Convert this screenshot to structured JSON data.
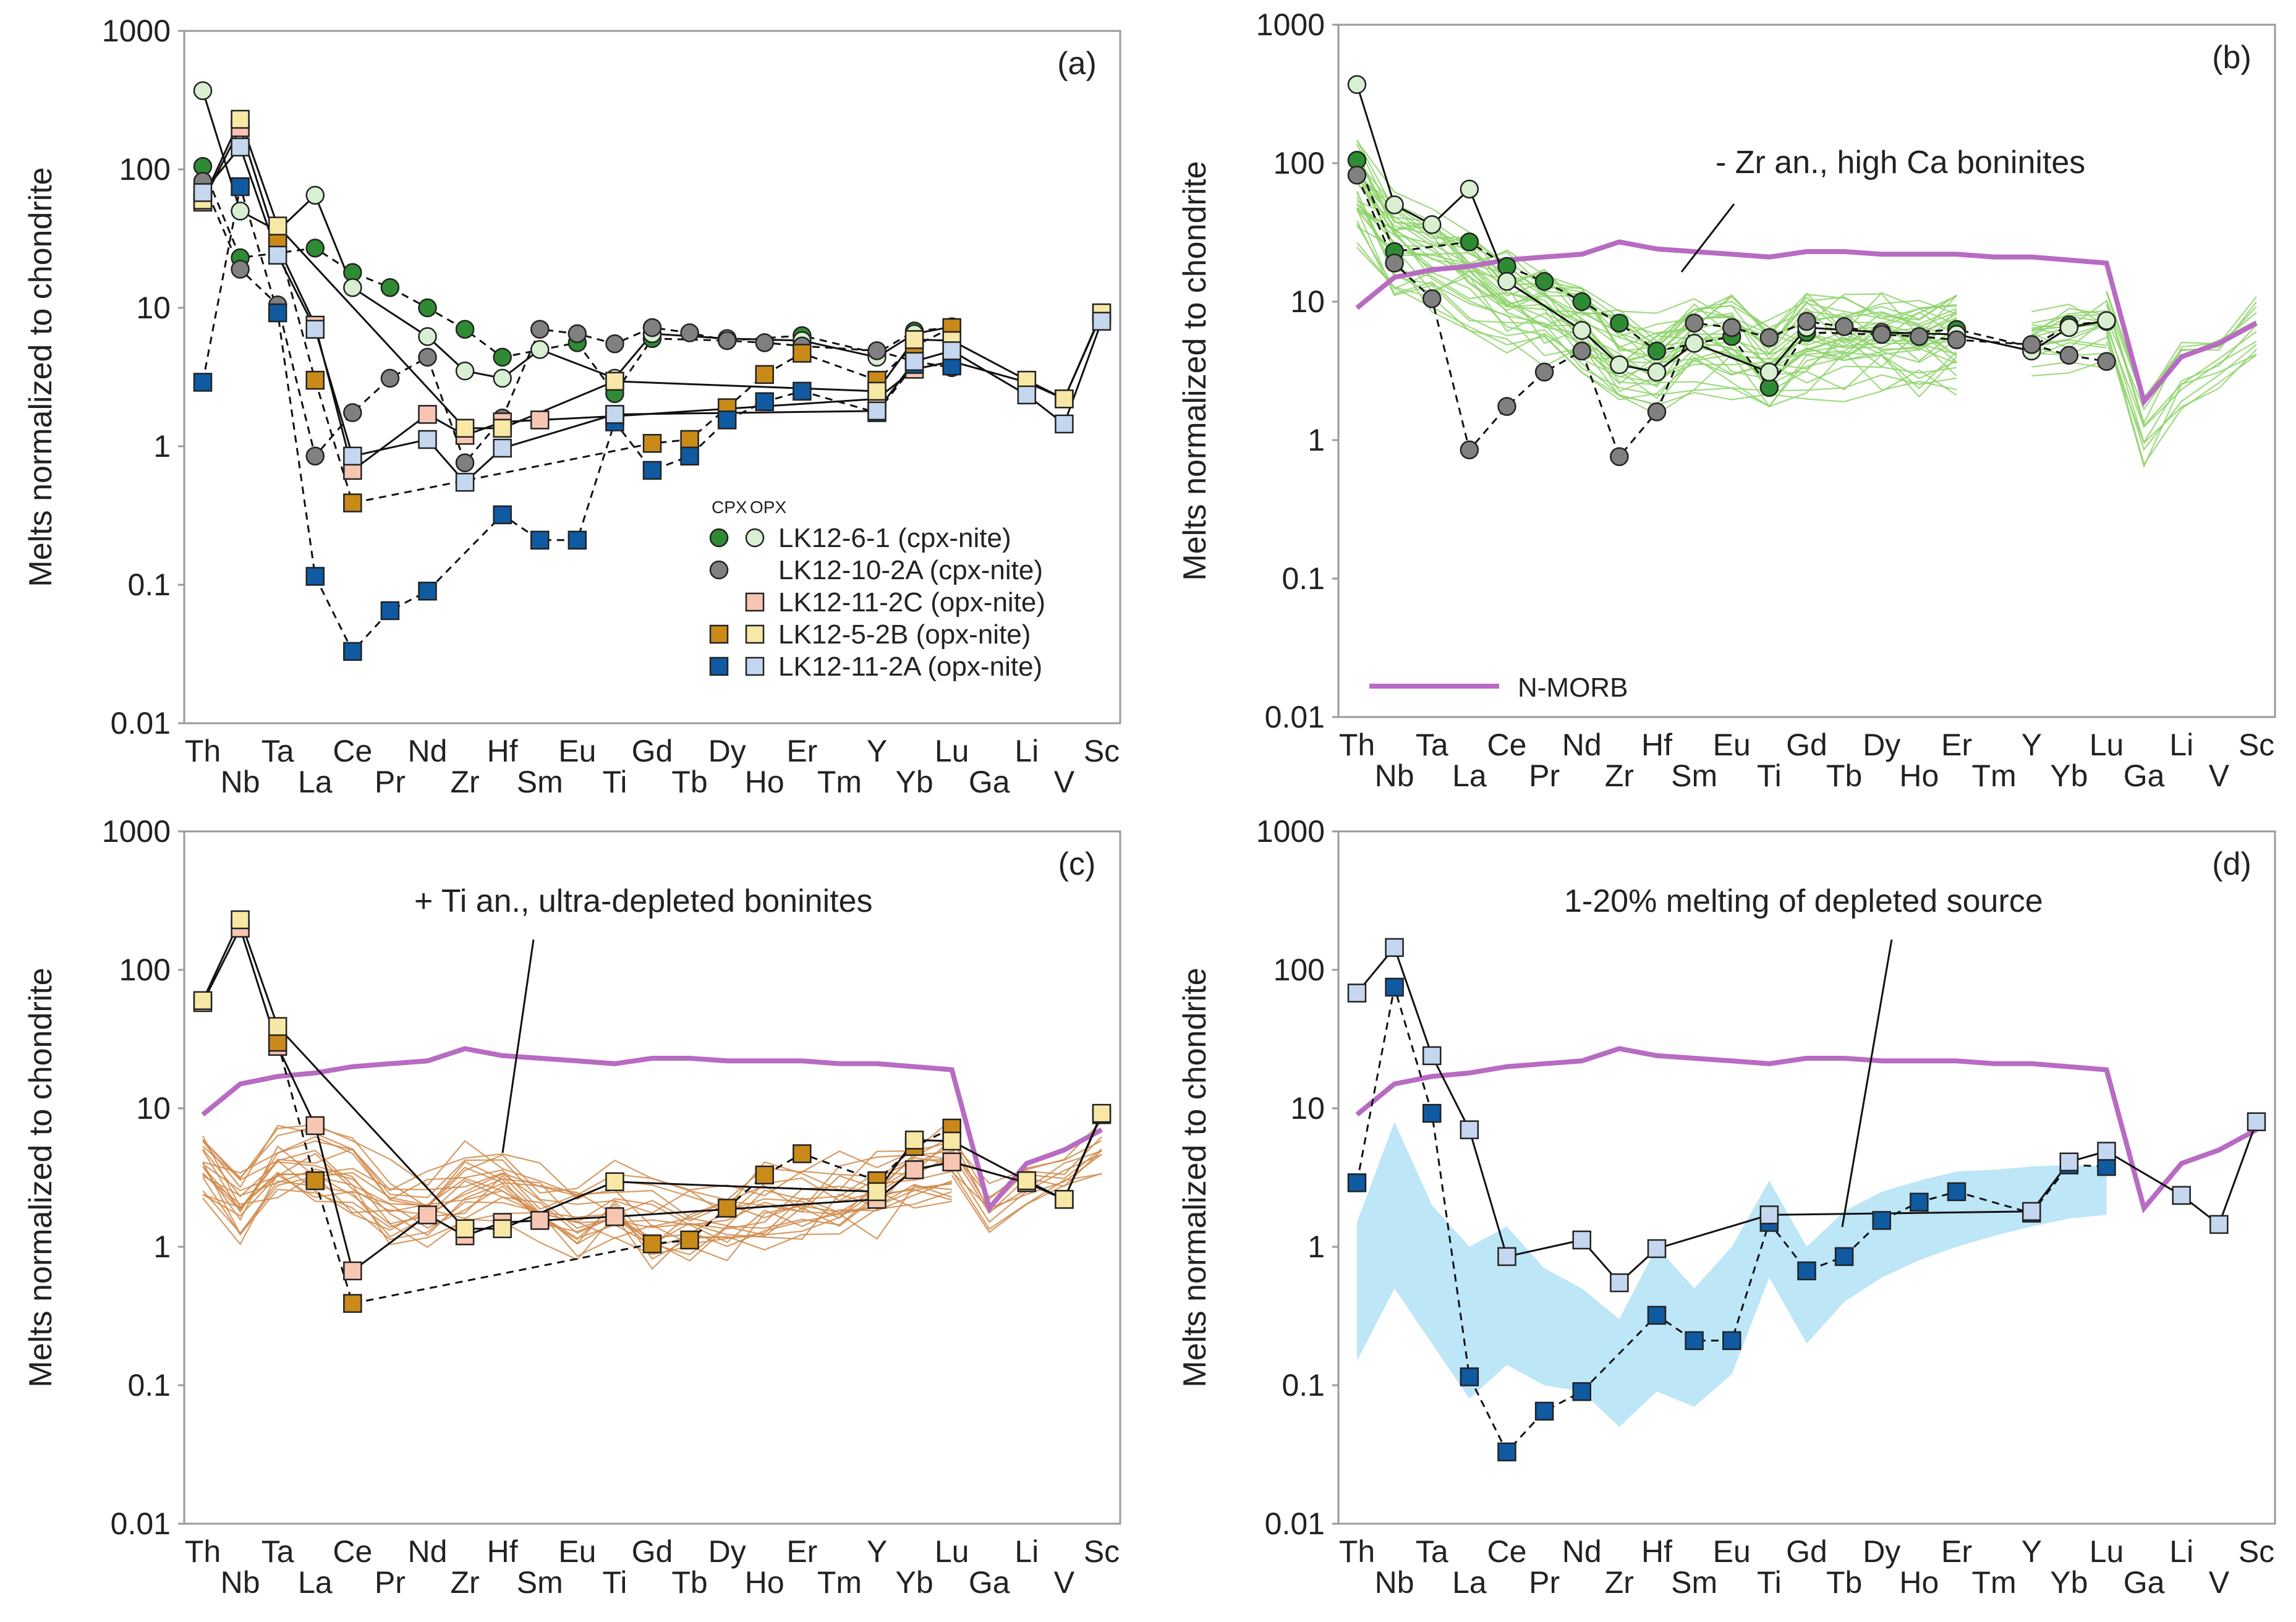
{
  "elements": [
    "Th",
    "Nb",
    "Ta",
    "La",
    "Ce",
    "Pr",
    "Nd",
    "Zr",
    "Hf",
    "Sm",
    "Eu",
    "Ti",
    "Gd",
    "Tb",
    "Dy",
    "Ho",
    "Er",
    "Tm",
    "Y",
    "Yb",
    "Lu",
    "Ga",
    "Li",
    "V",
    "Sc"
  ],
  "y_ticks": [
    "0.01",
    "0.1",
    "1",
    "10",
    "100",
    "1000"
  ],
  "y_label": "Melts normalized to chondrite",
  "colors": {
    "green_dark": "#2e8b34",
    "green_light": "#d8efd2",
    "grey": "#808080",
    "pink": "#f7c6b3",
    "orange": "#c98a1a",
    "yellow": "#f7e8a6",
    "blue_dark": "#0f5aa1",
    "blue_light": "#c5d7ef",
    "nmorb": "#b86bc2",
    "boninite_green": "#8ed46b",
    "boninite_orange": "#d08a4a",
    "band": "#bde6f7"
  },
  "legend": {
    "cpx_header": "CPX",
    "opx_header": "OPX",
    "entries": [
      "LK12-6-1 (cpx-nite)",
      "LK12-10-2A (cpx-nite)",
      "LK12-11-2C (opx-nite)",
      "LK12-5-2B (opx-nite)",
      "LK12-11-2A (opx-nite)"
    ]
  },
  "panels": {
    "a": {
      "letter": "(a)"
    },
    "b": {
      "letter": "(b)",
      "annotation": "- Zr an., high Ca boninites",
      "legend_nmorb": "N-MORB"
    },
    "c": {
      "letter": "(c)",
      "annotation": "+ Ti an., ultra-depleted boninites"
    },
    "d": {
      "letter": "(d)",
      "annotation": "1-20% melting of depleted source"
    }
  },
  "chart_data": [
    {
      "panel": "a",
      "type": "line",
      "yscale": "log",
      "ylim": [
        0.01,
        1000
      ],
      "ylabel": "Melts normalized to chondrite",
      "series": [
        {
          "name": "LK12-6-1 cpx",
          "marker": "circle",
          "color": "#2e8b34",
          "dash": true,
          "values": {
            "Th": 105,
            "Nb": 23,
            "La": 27,
            "Ce": 18,
            "Pr": 14,
            "Nd": 10,
            "Zr": 7,
            "Hf": 4.4,
            "Eu": 5.6,
            "Ti": 2.4,
            "Gd": 6,
            "Dy": 5.8,
            "Er": 6.3,
            "Y": 4.7,
            "Yb": 6.8,
            "Lu": 7.2
          }
        },
        {
          "name": "LK12-6-1 opx",
          "marker": "circle",
          "color": "#d8efd2",
          "dash": false,
          "values": {
            "Th": 370,
            "Nb": 50,
            "Ta": 36,
            "La": 65,
            "Ce": 14,
            "Nd": 6.2,
            "Zr": 3.5,
            "Hf": 3.1,
            "Sm": 5,
            "Ti": 3.1,
            "Gd": 6.5,
            "Dy": 6,
            "Er": 5.8,
            "Y": 4.4,
            "Yb": 6.5,
            "Lu": 7.3
          }
        },
        {
          "name": "LK12-10-2A cpx",
          "marker": "circle",
          "color": "#808080",
          "dash": true,
          "values": {
            "Th": 82,
            "Nb": 19,
            "Ta": 10.5,
            "La": 0.85,
            "Ce": 1.75,
            "Pr": 3.1,
            "Nd": 4.4,
            "Zr": 0.76,
            "Hf": 1.6,
            "Sm": 7,
            "Eu": 6.5,
            "Ti": 5.5,
            "Gd": 7.2,
            "Tb": 6.6,
            "Dy": 5.8,
            "Ho": 5.6,
            "Er": 5.3,
            "Y": 4.9,
            "Yb": 4.1,
            "Lu": 3.7
          }
        },
        {
          "name": "LK12-11-2C opx",
          "marker": "square",
          "color": "#f7c6b3",
          "dash": false,
          "values": {
            "Th": 58,
            "Nb": 200,
            "Ta": 28,
            "La": 7.5,
            "Ce": 0.67,
            "Nd": 1.7,
            "Zr": 1.2,
            "Hf": 1.5,
            "Sm": 1.55,
            "Ti": 1.65,
            "Y": 2.2,
            "Yb": 3.6,
            "Lu": 4.1,
            "Li": 2.9,
            "V": 2.2,
            "Sc": 9
          }
        },
        {
          "name": "LK12-5-2B cpx",
          "marker": "square",
          "color": "#c98a1a",
          "dash": true,
          "values": {
            "Ta": 30,
            "La": 3,
            "Ce": 0.39,
            "Gd": 1.05,
            "Tb": 1.12,
            "Dy": 1.9,
            "Ho": 3.3,
            "Er": 4.7,
            "Y": 3,
            "Yb": 5.3,
            "Lu": 7.2
          }
        },
        {
          "name": "LK12-5-2B opx",
          "marker": "square",
          "color": "#f7e8a6",
          "dash": false,
          "values": {
            "Th": 60,
            "Nb": 230,
            "Ta": 39,
            "Zr": 1.35,
            "Hf": 1.35,
            "Ti": 2.95,
            "Y": 2.5,
            "Yb": 5.9,
            "Lu": 5.8,
            "Li": 3,
            "V": 2.2,
            "Sc": 9.2
          }
        },
        {
          "name": "LK12-11-2A cpx",
          "marker": "square",
          "color": "#0f5aa1",
          "dash": true,
          "values": {
            "Th": 2.9,
            "Nb": 75,
            "Ta": 9.2,
            "La": 0.115,
            "Ce": 0.033,
            "Pr": 0.065,
            "Nd": 0.09,
            "Hf": 0.32,
            "Sm": 0.21,
            "Eu": 0.21,
            "Ti": 1.5,
            "Gd": 0.67,
            "Tb": 0.85,
            "Dy": 1.55,
            "Ho": 2.1,
            "Er": 2.5,
            "Y": 1.75,
            "Yb": 3.9,
            "Lu": 3.8
          }
        },
        {
          "name": "LK12-11-2A opx",
          "marker": "square",
          "color": "#c5d7ef",
          "dash": false,
          "values": {
            "Th": 68,
            "Nb": 145,
            "Ta": 24,
            "La": 7,
            "Ce": 0.85,
            "Nd": 1.12,
            "Zr": 0.55,
            "Hf": 0.97,
            "Ti": 1.7,
            "Y": 1.8,
            "Yb": 4.1,
            "Lu": 4.9,
            "Li": 2.35,
            "V": 1.45,
            "Sc": 8
          }
        }
      ]
    },
    {
      "panel": "b",
      "type": "line",
      "yscale": "log",
      "ylim": [
        0.01,
        1000
      ],
      "reference": "N-MORB",
      "nmorb": {
        "Th": 9,
        "Nb": 15,
        "Ta": 17,
        "La": 18,
        "Ce": 20,
        "Pr": 21,
        "Nd": 22,
        "Zr": 27,
        "Hf": 24,
        "Sm": 23,
        "Eu": 22,
        "Ti": 21,
        "Gd": 23,
        "Tb": 23,
        "Dy": 22,
        "Ho": 22,
        "Er": 22,
        "Tm": 21,
        "Y": 21,
        "Yb": 20,
        "Lu": 19,
        "Ga": 1.9,
        "Li": 4,
        "V": 5,
        "Sc": 7
      },
      "field": "- Zr an., high Ca boninites",
      "series": [
        "LK12-6-1 cpx",
        "LK12-6-1 opx",
        "LK12-10-2A cpx"
      ]
    },
    {
      "panel": "c",
      "type": "line",
      "yscale": "log",
      "ylim": [
        0.01,
        1000
      ],
      "reference": "N-MORB",
      "field": "+ Ti an., ultra-depleted boninites",
      "series": [
        "LK12-11-2C opx",
        "LK12-5-2B cpx",
        "LK12-5-2B opx"
      ]
    },
    {
      "panel": "d",
      "type": "line",
      "yscale": "log",
      "ylim": [
        0.01,
        1000
      ],
      "reference": "N-MORB",
      "field": "1-20% melting of depleted source",
      "band_upper": {
        "Th": 1.5,
        "Nb": 8,
        "Ta": 2,
        "La": 1,
        "Ce": 1.4,
        "Pr": 0.7,
        "Nd": 0.5,
        "Zr": 0.3,
        "Hf": 1,
        "Sm": 0.5,
        "Eu": 1,
        "Ti": 3,
        "Gd": 1,
        "Tb": 1.8,
        "Dy": 2.5,
        "Ho": 3,
        "Er": 3.5,
        "Tm": 3.6,
        "Y": 3.8,
        "Yb": 3.9,
        "Lu": 3.8
      },
      "band_lower": {
        "Th": 0.15,
        "Nb": 0.5,
        "Ta": 0.2,
        "La": 0.08,
        "Ce": 0.14,
        "Pr": 0.1,
        "Nd": 0.09,
        "Zr": 0.05,
        "Hf": 0.09,
        "Sm": 0.07,
        "Eu": 0.12,
        "Ti": 0.6,
        "Gd": 0.2,
        "Tb": 0.4,
        "Dy": 0.6,
        "Ho": 0.8,
        "Er": 1,
        "Tm": 1.2,
        "Y": 1.4,
        "Yb": 1.6,
        "Lu": 1.7
      },
      "series": [
        "LK12-11-2A cpx",
        "LK12-11-2A opx"
      ]
    }
  ]
}
